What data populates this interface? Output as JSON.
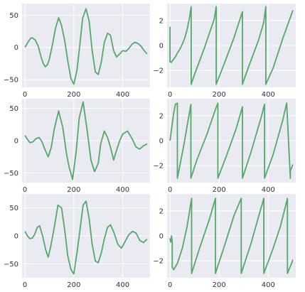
{
  "chart_data": [
    {
      "type": "line",
      "xlim": [
        -12,
        512
      ],
      "ylim": [
        -62,
        68
      ],
      "xticks": [
        0,
        200,
        400
      ],
      "xtick_labels": [
        "0",
        "200",
        "400"
      ],
      "yticks": [
        -50,
        0,
        50
      ],
      "ytick_labels": [
        "−50",
        "0",
        "50"
      ],
      "grid": true,
      "color": "#55a868",
      "series": [
        {
          "x": [
            0,
            12,
            23,
            30,
            43,
            55,
            66,
            75,
            83,
            92,
            100,
            113,
            125,
            138,
            150,
            163,
            175,
            188,
            200,
            213,
            225,
            236,
            250,
            263,
            275,
            288,
            300,
            313,
            325,
            338,
            350,
            363,
            375,
            388,
            400,
            413,
            425,
            438,
            450,
            463,
            475,
            488,
            500
          ],
          "y": [
            0,
            8,
            14,
            15,
            11,
            1,
            -15,
            -25,
            -30,
            -27,
            -18,
            5,
            30,
            46,
            34,
            10,
            -20,
            -48,
            -57,
            -35,
            5,
            45,
            60,
            40,
            -5,
            -38,
            -42,
            -22,
            8,
            22,
            19,
            -5,
            -15,
            -10,
            -5,
            -6,
            -2,
            5,
            8,
            6,
            2,
            -5,
            -10
          ]
        }
      ]
    },
    {
      "type": "line",
      "xlim": [
        -12,
        512
      ],
      "ylim": [
        -3.35,
        3.35
      ],
      "xticks": [
        0,
        200,
        400
      ],
      "xtick_labels": [
        "0",
        "200",
        "400"
      ],
      "yticks": [
        -2,
        0,
        2
      ],
      "ytick_labels": [
        "−2",
        "0",
        "2"
      ],
      "grid": true,
      "color": "#55a868",
      "series": [
        {
          "x": [
            0,
            0,
            5,
            10,
            15,
            20,
            25,
            30,
            40,
            50,
            60,
            70,
            80,
            86,
            86,
            100,
            140,
            180,
            188,
            188,
            220,
            260,
            290,
            295,
            295,
            320,
            360,
            381,
            390,
            390,
            420,
            460,
            500
          ],
          "y": [
            1.5,
            -1.3,
            -1.35,
            -1.2,
            -1.1,
            -0.95,
            -0.8,
            -0.6,
            -0.3,
            0.1,
            0.6,
            1.3,
            2.3,
            3.1,
            -3.1,
            -2.3,
            -0.2,
            2.1,
            3.1,
            -3.1,
            -1.5,
            0.6,
            2.4,
            2.7,
            -3.1,
            -1.7,
            0.4,
            1.8,
            3.1,
            -3.1,
            -1.8,
            0.6,
            2.8
          ]
        }
      ]
    },
    {
      "type": "line",
      "xlim": [
        -12,
        512
      ],
      "ylim": [
        -65,
        65
      ],
      "xticks": [
        0,
        200,
        400
      ],
      "xtick_labels": [
        "0",
        "200",
        "400"
      ],
      "yticks": [
        -50,
        0,
        50
      ],
      "ytick_labels": [
        "−50",
        "0",
        "50"
      ],
      "grid": true,
      "color": "#55a868",
      "series": [
        {
          "x": [
            0,
            10,
            20,
            32,
            45,
            58,
            70,
            80,
            95,
            108,
            120,
            138,
            155,
            170,
            180,
            195,
            210,
            222,
            238,
            255,
            270,
            285,
            300,
            310,
            325,
            338,
            350,
            363,
            375,
            388,
            400,
            420,
            440,
            455,
            470,
            485,
            500
          ],
          "y": [
            8,
            2,
            -3,
            -2,
            3,
            5,
            -2,
            -12,
            -25,
            -10,
            18,
            46,
            20,
            -20,
            -40,
            -60,
            -15,
            35,
            60,
            15,
            -30,
            -48,
            -35,
            -5,
            15,
            5,
            -10,
            -30,
            -15,
            0,
            10,
            15,
            2,
            -10,
            -13,
            -8,
            -5
          ]
        }
      ]
    },
    {
      "type": "line",
      "xlim": [
        -12,
        512
      ],
      "ylim": [
        -3.35,
        3.35
      ],
      "xticks": [
        0,
        200,
        400
      ],
      "xtick_labels": [
        "0",
        "200",
        "400"
      ],
      "yticks": [
        -2,
        0,
        2
      ],
      "ytick_labels": [
        "−2",
        "0",
        "2"
      ],
      "grid": true,
      "color": "#55a868",
      "series": [
        {
          "x": [
            0,
            8,
            15,
            22,
            30,
            30,
            55,
            85,
            85,
            110,
            150,
            185,
            195,
            195,
            230,
            270,
            295,
            295,
            330,
            370,
            385,
            385,
            420,
            460,
            475,
            490,
            490,
            500
          ],
          "y": [
            0,
            1.2,
            2.2,
            2.9,
            3.0,
            -3.0,
            -0.5,
            2.9,
            -3.0,
            -1.5,
            0.5,
            2.5,
            3.0,
            -3.0,
            -1.2,
            1.0,
            2.7,
            -3.0,
            -0.9,
            1.8,
            2.9,
            -3.0,
            -1.1,
            1.7,
            3.0,
            -3.0,
            -2.4,
            -1.9
          ]
        }
      ]
    },
    {
      "type": "line",
      "xlim": [
        -12,
        512
      ],
      "ylim": [
        -75,
        75
      ],
      "xticks": [
        0,
        200,
        400
      ],
      "xtick_labels": [
        "0",
        "200",
        "400"
      ],
      "yticks": [
        -50,
        0,
        50
      ],
      "ytick_labels": [
        "−50",
        "0",
        "50"
      ],
      "grid": true,
      "color": "#55a868",
      "series": [
        {
          "x": [
            0,
            10,
            20,
            30,
            40,
            50,
            60,
            72,
            85,
            95,
            105,
            120,
            135,
            150,
            163,
            175,
            188,
            200,
            213,
            225,
            238,
            250,
            263,
            275,
            288,
            300,
            313,
            325,
            338,
            350,
            365,
            380,
            395,
            410,
            425,
            440,
            455,
            470,
            485,
            500
          ],
          "y": [
            8,
            0,
            -5,
            -4,
            3,
            15,
            18,
            0,
            -25,
            -38,
            -20,
            15,
            55,
            50,
            10,
            -35,
            -60,
            -68,
            -30,
            10,
            55,
            62,
            30,
            -15,
            -45,
            -48,
            -30,
            -5,
            15,
            20,
            5,
            -15,
            -22,
            -10,
            2,
            8,
            5,
            -8,
            -12,
            -6
          ]
        }
      ]
    },
    {
      "type": "line",
      "xlim": [
        -12,
        512
      ],
      "ylim": [
        -3.35,
        3.35
      ],
      "xticks": [
        0,
        200,
        400
      ],
      "xtick_labels": [
        "0",
        "200",
        "400"
      ],
      "yticks": [
        -2,
        0,
        2
      ],
      "ytick_labels": [
        "−2",
        "0",
        "2"
      ],
      "grid": true,
      "color": "#55a868",
      "series": [
        {
          "x": [
            0,
            3,
            6,
            9,
            9,
            15,
            30,
            50,
            70,
            88,
            88,
            120,
            160,
            185,
            185,
            220,
            260,
            290,
            290,
            330,
            370,
            382,
            382,
            420,
            450,
            478,
            478,
            495,
            500
          ],
          "y": [
            -0.2,
            -0.5,
            0.0,
            -0.5,
            -2.5,
            -2.7,
            -2.2,
            -1.0,
            0.8,
            3.0,
            -3.0,
            -1.0,
            1.3,
            3.0,
            -3.0,
            -0.9,
            1.6,
            3.0,
            -3.0,
            -0.6,
            2.2,
            3.0,
            -3.0,
            -1.0,
            0.8,
            3.0,
            -3.0,
            -2.2,
            -1.9
          ]
        }
      ]
    }
  ]
}
